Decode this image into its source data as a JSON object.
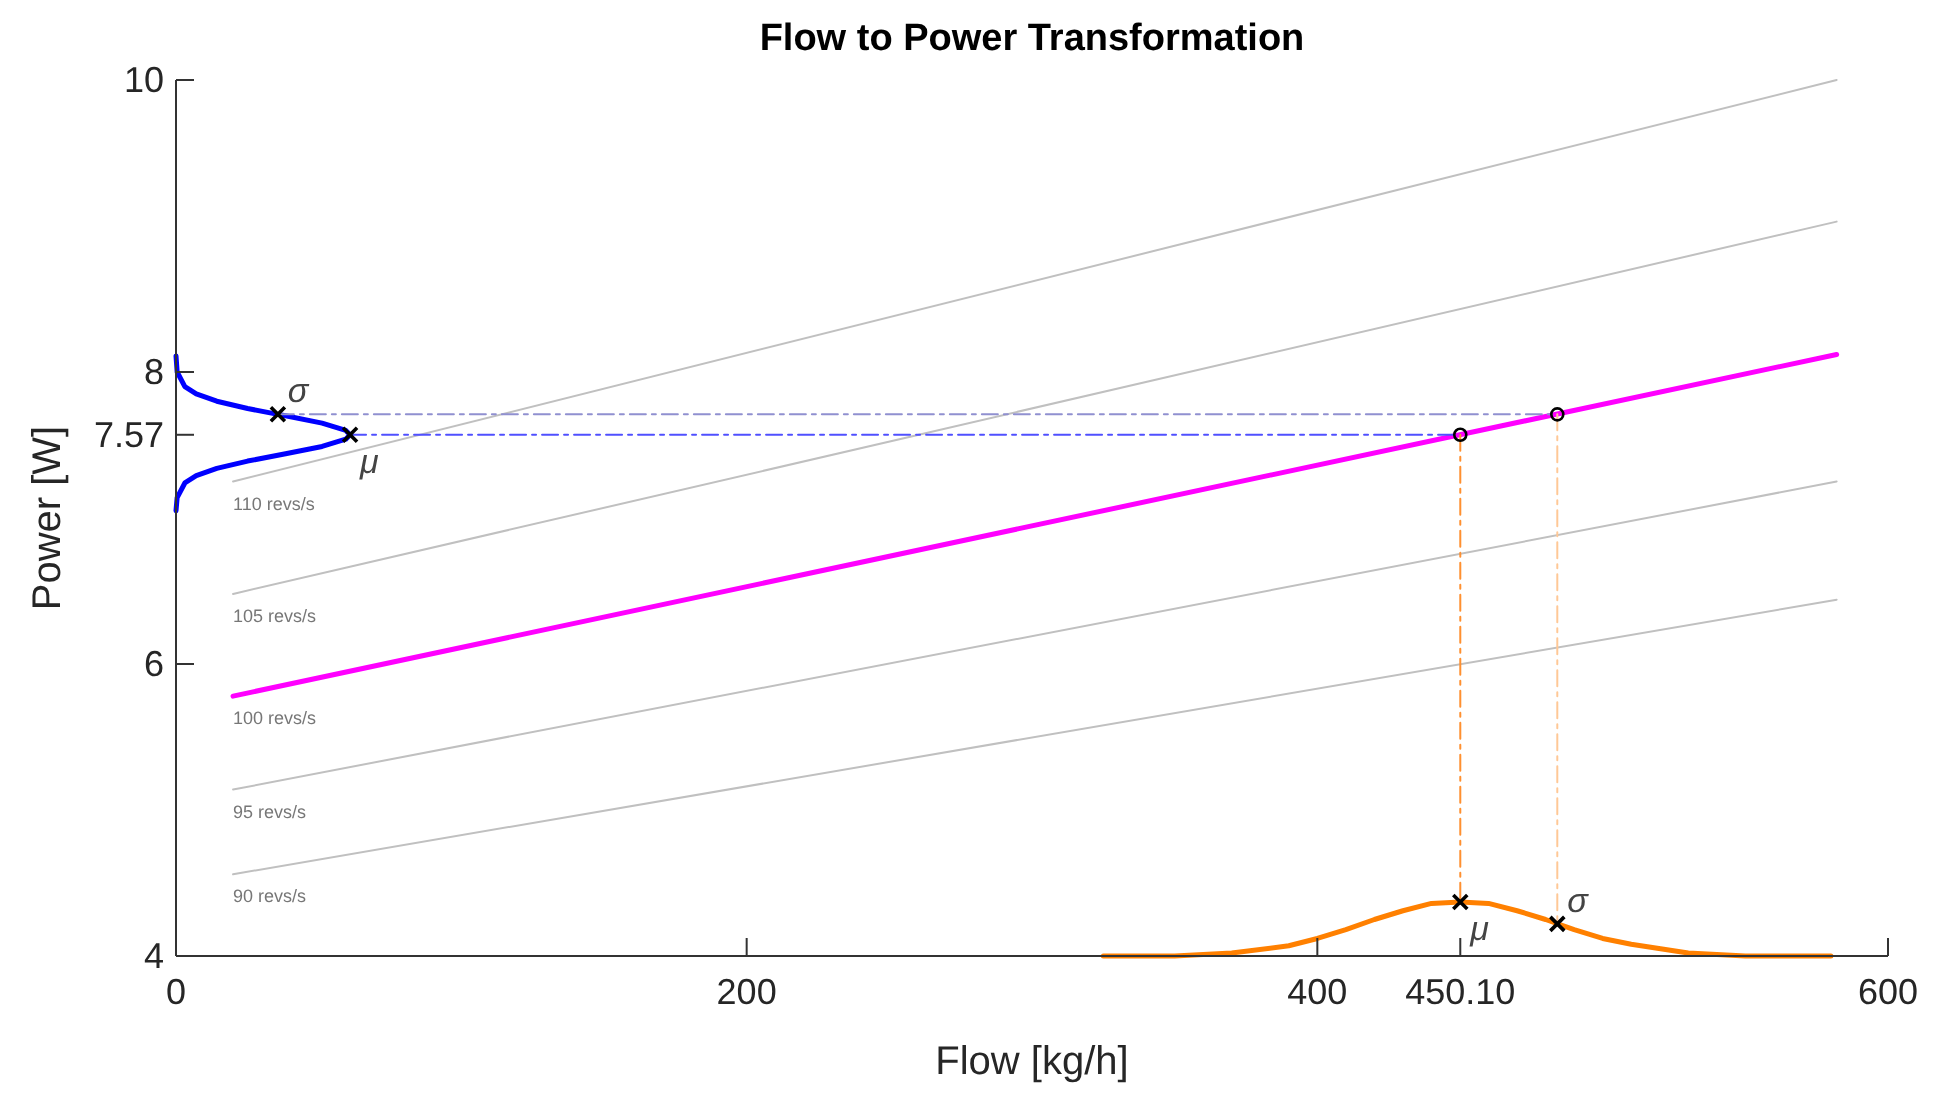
{
  "chart_data": {
    "type": "line",
    "title": "Flow to Power Transformation",
    "xlabel": "Flow [kg/h]",
    "ylabel": "Power [W]",
    "xlim": [
      0,
      600
    ],
    "ylim": [
      4,
      10
    ],
    "xticks": [
      0,
      200,
      400,
      {
        "value": 450.1,
        "label": "450.10"
      },
      600
    ],
    "yticks": [
      4,
      6,
      {
        "value": 7.57,
        "label": "7.57"
      },
      8,
      10
    ],
    "grid": false,
    "series": [
      {
        "name": "90 revs/s",
        "color": "#c0c0c0",
        "x": [
          20,
          582
        ],
        "values": [
          4.56,
          6.44
        ]
      },
      {
        "name": "95 revs/s",
        "color": "#c0c0c0",
        "x": [
          20,
          582
        ],
        "values": [
          5.14,
          7.25
        ]
      },
      {
        "name": "100 revs/s",
        "color": "#ff00ff",
        "x": [
          20,
          582
        ],
        "values": [
          5.78,
          8.12
        ]
      },
      {
        "name": "105 revs/s",
        "color": "#c0c0c0",
        "x": [
          20,
          582
        ],
        "values": [
          6.48,
          9.03
        ]
      },
      {
        "name": "110 revs/s",
        "color": "#c0c0c0",
        "x": [
          20,
          582
        ],
        "values": [
          7.25,
          10
        ]
      },
      {
        "color": "#0000ff",
        "x": [
          0,
          0.4,
          3.1,
          7.1,
          14.3,
          25.1,
          35.7,
          38.4,
          51.2,
          59.5,
          61,
          59.5,
          51.2,
          38.4,
          25.1,
          14.3,
          7.1,
          3.1,
          0.4,
          0
        ],
        "values": [
          8.11,
          8.0,
          7.9,
          7.85,
          7.8,
          7.75,
          7.71,
          7.7,
          7.65,
          7.6,
          7.57,
          7.54,
          7.49,
          7.44,
          7.39,
          7.34,
          7.29,
          7.24,
          7.14,
          7.05
        ]
      },
      {
        "color": "#ff8000",
        "x": [
          325,
          350,
          370,
          390,
          400,
          410,
          420,
          430,
          440,
          450.1,
          460,
          470,
          480,
          490,
          500,
          510,
          530,
          550,
          580
        ],
        "values": [
          4.0,
          4.0,
          4.02,
          4.07,
          4.12,
          4.18,
          4.25,
          4.31,
          4.36,
          4.37,
          4.36,
          4.31,
          4.25,
          4.18,
          4.12,
          4.08,
          4.02,
          4.0,
          4.0
        ]
      },
      {
        "color": "#5050ff",
        "line_style": "dashed",
        "x": [
          61,
          450.1
        ],
        "values": [
          7.57,
          7.57
        ]
      },
      {
        "color": "#9090d0",
        "line_style": "dashed",
        "x": [
          35.7,
          484.1
        ],
        "values": [
          7.71,
          7.71
        ]
      },
      {
        "color": "#ff9030",
        "line_style": "dashed",
        "x": [
          450.1,
          450.1
        ],
        "values": [
          7.57,
          4.37
        ]
      },
      {
        "color": "#ffc896",
        "line_style": "dashed",
        "x": [
          484.1,
          484.1
        ],
        "values": [
          7.71,
          4.22
        ]
      },
      {
        "type": "scatter",
        "marker": "circle",
        "color": "#000000",
        "x": [
          450.1,
          484.1
        ],
        "values": [
          7.57,
          7.71
        ]
      },
      {
        "type": "scatter",
        "marker": "cross",
        "color": "#000000",
        "x": [
          61,
          450.1,
          35.7,
          484.1
        ],
        "values": [
          7.57,
          4.37,
          7.71,
          4.22
        ]
      }
    ],
    "annotations": [
      {
        "text": "μ",
        "x": 61,
        "y": 7.57
      },
      {
        "text": "σ",
        "x": 35.7,
        "y": 7.71
      },
      {
        "text": "μ",
        "x": 450.1,
        "y": 4.37
      },
      {
        "text": "σ",
        "x": 484.1,
        "y": 4.22
      }
    ]
  }
}
